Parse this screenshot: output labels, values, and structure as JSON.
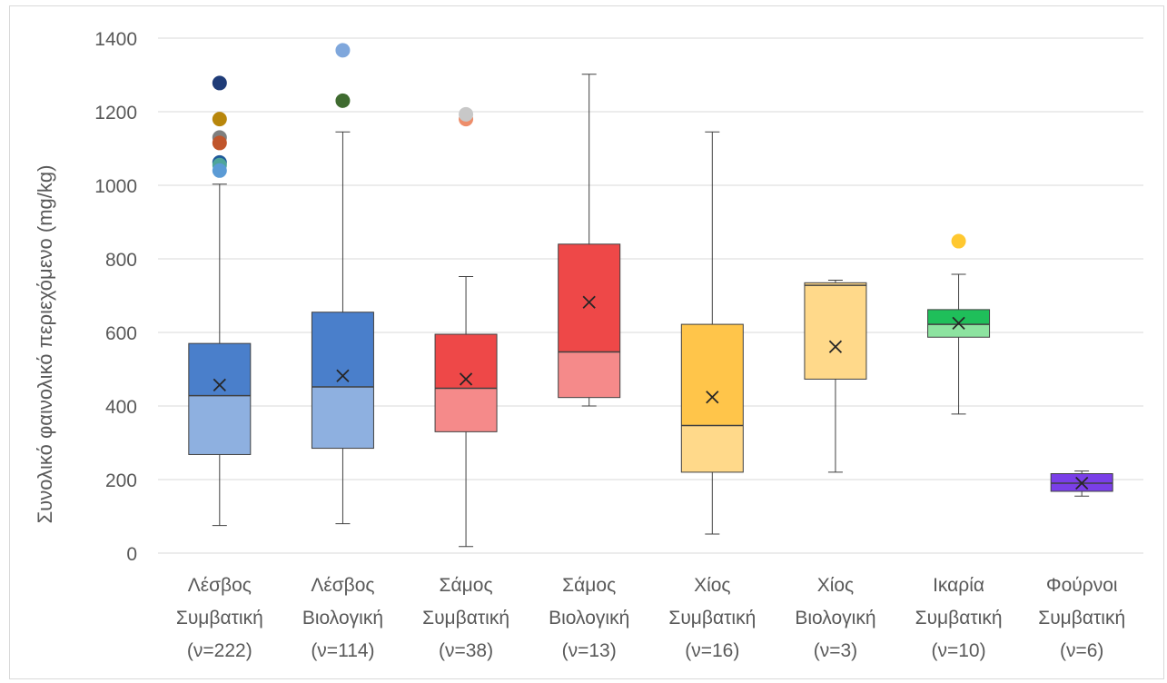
{
  "chart_data": {
    "type": "box",
    "title": "",
    "xlabel": "",
    "ylabel": "Συνολικό φαινολικό περιεχόμενο (mg/kg)",
    "ylim": [
      0,
      1400
    ],
    "yticks": [
      0,
      200,
      400,
      600,
      800,
      1000,
      1200,
      1400
    ],
    "grid": true,
    "categories": [
      {
        "line1": "Λέσβος",
        "line2": "Συμβατική",
        "line3": "(ν=222)"
      },
      {
        "line1": "Λέσβος",
        "line2": "Βιολογική",
        "line3": "(ν=114)"
      },
      {
        "line1": "Σάμος",
        "line2": "Συμβατική",
        "line3": "(ν=38)"
      },
      {
        "line1": "Σάμος",
        "line2": "Βιολογική",
        "line3": "(ν=13)"
      },
      {
        "line1": "Χίος",
        "line2": "Συμβατική",
        "line3": "(ν=16)"
      },
      {
        "line1": "Χίος",
        "line2": "Βιολογική",
        "line3": "(ν=3)"
      },
      {
        "line1": "Ικαρία",
        "line2": "Συμβατική",
        "line3": "(ν=10)"
      },
      {
        "line1": "Φούρνοι",
        "line2": "Συμβατική",
        "line3": "(ν=6)"
      }
    ],
    "boxes": [
      {
        "min": 75,
        "q1": 268,
        "median": 428,
        "q3": 570,
        "max": 1003,
        "mean": 457,
        "upper_color": "#4a7fcb",
        "lower_color": "#8eb0e0",
        "outliers": [
          {
            "y": 1278,
            "color": "#1f3c78"
          },
          {
            "y": 1180,
            "color": "#b8860b"
          },
          {
            "y": 1130,
            "color": "#7f7f7f"
          },
          {
            "y": 1115,
            "color": "#c0552b"
          },
          {
            "y": 1062,
            "color": "#1f5a9a"
          },
          {
            "y": 1055,
            "color": "#4fa59a"
          },
          {
            "y": 1040,
            "color": "#5b9bd5"
          }
        ]
      },
      {
        "min": 80,
        "q1": 285,
        "median": 452,
        "q3": 655,
        "max": 1145,
        "mean": 482,
        "upper_color": "#4a7fcb",
        "lower_color": "#8eb0e0",
        "outliers": [
          {
            "y": 1367,
            "color": "#7fa7dc"
          },
          {
            "y": 1230,
            "color": "#3f6b30"
          }
        ]
      },
      {
        "min": 18,
        "q1": 330,
        "median": 448,
        "q3": 595,
        "max": 752,
        "mean": 473,
        "upper_color": "#ee4848",
        "lower_color": "#f58a8a",
        "outliers": [
          {
            "y": 1180,
            "color": "#ed8d6a"
          },
          {
            "y": 1193,
            "color": "#c8c8c8"
          }
        ]
      },
      {
        "min": 400,
        "q1": 423,
        "median": 547,
        "q3": 840,
        "max": 1302,
        "mean": 682,
        "upper_color": "#ee4848",
        "lower_color": "#f58a8a",
        "outliers": []
      },
      {
        "min": 52,
        "q1": 220,
        "median": 347,
        "q3": 622,
        "max": 1145,
        "mean": 424,
        "upper_color": "#ffc54a",
        "lower_color": "#ffd98a",
        "outliers": []
      },
      {
        "min": 220,
        "q1": 473,
        "median": 728,
        "q3": 735,
        "max": 742,
        "mean": 561,
        "upper_color": "#ffd98a",
        "lower_color": "#ffd98a",
        "outliers": []
      },
      {
        "min": 378,
        "q1": 587,
        "median": 622,
        "q3": 662,
        "max": 758,
        "mean": 625,
        "upper_color": "#1fbf5a",
        "lower_color": "#8de3a0",
        "outliers": [
          {
            "y": 848,
            "color": "#ffc830"
          }
        ]
      },
      {
        "min": 155,
        "q1": 168,
        "median": 190,
        "q3": 216,
        "max": 223,
        "mean": 190,
        "upper_color": "#7a3fe8",
        "lower_color": "#7a3fe8",
        "outliers": []
      }
    ]
  }
}
